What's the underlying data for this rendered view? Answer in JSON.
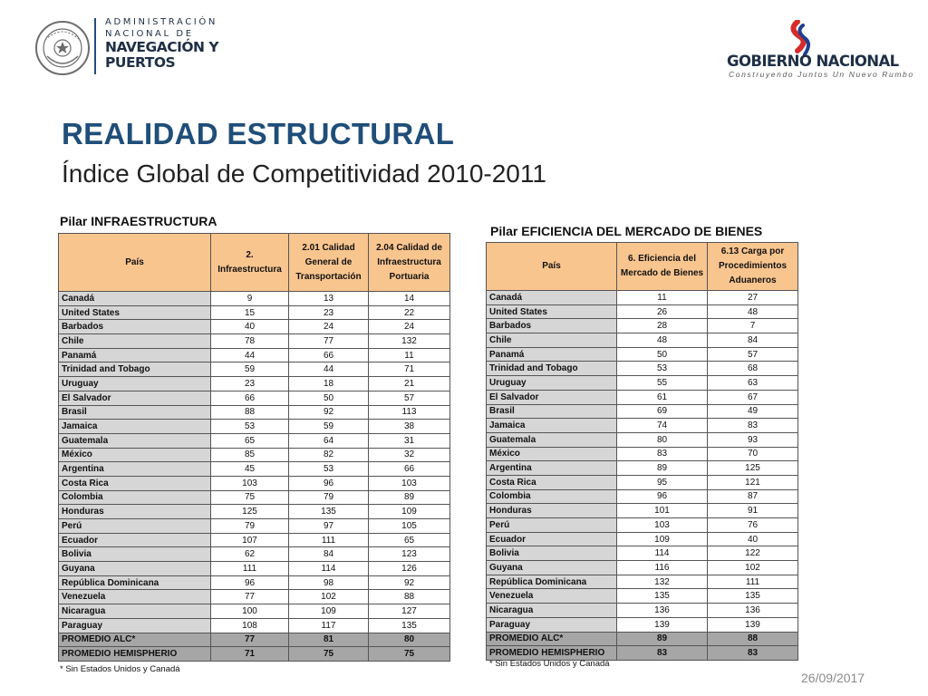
{
  "header": {
    "agency_line1": "ADMINISTRACIÓN",
    "agency_line2": "NACIONAL DE",
    "agency_line3": "NAVEGACIÓN Y",
    "agency_line4": "PUERTOS",
    "seal_icon": "coat-of-arms-icon",
    "gov_name": "GOBIERNO NACIONAL",
    "gov_tagline": "Construyendo Juntos Un Nuevo Rumbo",
    "gov_mark_icon": "flag-swoosh-icon"
  },
  "title": "REALIDAD ESTRUCTURAL",
  "subtitle": "Índice Global de Competitividad  2010-2011",
  "table_infra": {
    "title": "Pilar INFRAESTRUCTURA",
    "headers": [
      "País",
      "2. Infraestructura",
      "2.01 Calidad General de Transportación",
      "2.04 Calidad de Infraestructura Portuaria"
    ],
    "rows": [
      [
        "Canadá",
        "9",
        "13",
        "14"
      ],
      [
        "United States",
        "15",
        "23",
        "22"
      ],
      [
        "Barbados",
        "40",
        "24",
        "24"
      ],
      [
        "Chile",
        "78",
        "77",
        "132"
      ],
      [
        "Panamá",
        "44",
        "66",
        "11"
      ],
      [
        "Trinidad and Tobago",
        "59",
        "44",
        "71"
      ],
      [
        "Uruguay",
        "23",
        "18",
        "21"
      ],
      [
        "El Salvador",
        "66",
        "50",
        "57"
      ],
      [
        "Brasil",
        "88",
        "92",
        "113"
      ],
      [
        "Jamaica",
        "53",
        "59",
        "38"
      ],
      [
        "Guatemala",
        "65",
        "64",
        "31"
      ],
      [
        "México",
        "85",
        "82",
        "32"
      ],
      [
        "Argentina",
        "45",
        "53",
        "66"
      ],
      [
        "Costa Rica",
        "103",
        "96",
        "103"
      ],
      [
        "Colombia",
        "75",
        "79",
        "89"
      ],
      [
        "Honduras",
        "125",
        "135",
        "109"
      ],
      [
        "Perú",
        "79",
        "97",
        "105"
      ],
      [
        "Ecuador",
        "107",
        "111",
        "65"
      ],
      [
        "Bolivia",
        "62",
        "84",
        "123"
      ],
      [
        "Guyana",
        "111",
        "114",
        "126"
      ],
      [
        "República Dominicana",
        "96",
        "98",
        "92"
      ],
      [
        "Venezuela",
        "77",
        "102",
        "88"
      ],
      [
        "Nicaragua",
        "100",
        "109",
        "127"
      ],
      [
        "Paraguay",
        "108",
        "117",
        "135"
      ]
    ],
    "summary_rows": [
      [
        "PROMEDIO ALC*",
        "77",
        "81",
        "80"
      ],
      [
        "PROMEDIO HEMISPHERIO",
        "71",
        "75",
        "75"
      ]
    ],
    "footnote": "* Sin Estados Unidos y Canadá"
  },
  "table_market": {
    "title": "Pilar EFICIENCIA DEL MERCADO DE BIENES",
    "headers": [
      "País",
      "6. Eficiencia del Mercado de Bienes",
      "6.13 Carga por Procedimientos Aduaneros"
    ],
    "rows": [
      [
        "Canadá",
        "11",
        "27"
      ],
      [
        "United States",
        "26",
        "48"
      ],
      [
        "Barbados",
        "28",
        "7"
      ],
      [
        "Chile",
        "48",
        "84"
      ],
      [
        "Panamá",
        "50",
        "57"
      ],
      [
        "Trinidad and Tobago",
        "53",
        "68"
      ],
      [
        "Uruguay",
        "55",
        "63"
      ],
      [
        "El Salvador",
        "61",
        "67"
      ],
      [
        "Brasil",
        "69",
        "49"
      ],
      [
        "Jamaica",
        "74",
        "83"
      ],
      [
        "Guatemala",
        "80",
        "93"
      ],
      [
        "México",
        "83",
        "70"
      ],
      [
        "Argentina",
        "89",
        "125"
      ],
      [
        "Costa Rica",
        "95",
        "121"
      ],
      [
        "Colombia",
        "96",
        "87"
      ],
      [
        "Honduras",
        "101",
        "91"
      ],
      [
        "Perú",
        "103",
        "76"
      ],
      [
        "Ecuador",
        "109",
        "40"
      ],
      [
        "Bolivia",
        "114",
        "122"
      ],
      [
        "Guyana",
        "116",
        "102"
      ],
      [
        "República Dominicana",
        "132",
        "111"
      ],
      [
        "Venezuela",
        "135",
        "135"
      ],
      [
        "Nicaragua",
        "136",
        "136"
      ],
      [
        "Paraguay",
        "139",
        "139"
      ]
    ],
    "summary_rows": [
      [
        "PROMEDIO ALC*",
        "89",
        "88"
      ],
      [
        "PROMEDIO HEMISPHERIO",
        "83",
        "83"
      ]
    ],
    "footnote": "* Sin Estados Unidos y Canadá"
  },
  "date": "26/09/2017",
  "colors": {
    "title_blue": "#1f4e79",
    "header_orange": "#f9c58f",
    "country_gray": "#d6d6d6",
    "summary_gray": "#a6a6a6"
  }
}
